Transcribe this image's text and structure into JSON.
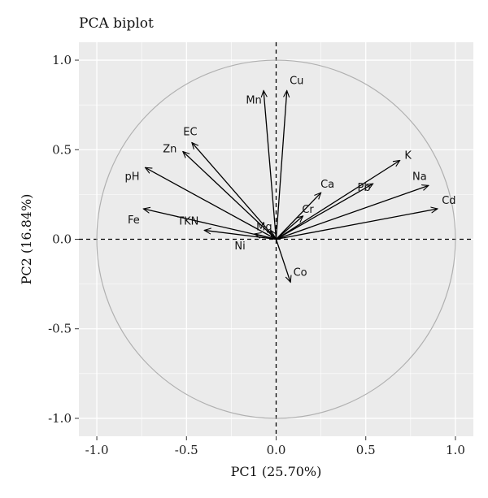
{
  "chart_data": {
    "type": "scatter",
    "subtype": "pca-biplot",
    "title": "PCA biplot",
    "xlabel": "PC1 (25.70%)",
    "ylabel": "PC2 (16.84%)",
    "xlim": [
      -1.1,
      1.1
    ],
    "ylim": [
      -1.1,
      1.1
    ],
    "x_ticks": [
      "-1.0",
      "-0.5",
      "0.0",
      "0.5",
      "1.0"
    ],
    "y_ticks": [
      "-1.0",
      "-0.5",
      "0.0",
      "0.5",
      "1.0"
    ],
    "grid": true,
    "unit_circle": true,
    "reference_lines": "dashed at x=0 and y=0",
    "colors": {
      "panel_background": "#ebebeb",
      "grid": "#ffffff",
      "arrow": "#000000",
      "circle": "#b0b0b0"
    },
    "loadings": [
      {
        "name": "Mn",
        "x": -0.07,
        "y": 0.83
      },
      {
        "name": "Cu",
        "x": 0.06,
        "y": 0.83
      },
      {
        "name": "EC",
        "x": -0.47,
        "y": 0.54
      },
      {
        "name": "Zn",
        "x": -0.52,
        "y": 0.49
      },
      {
        "name": "pH",
        "x": -0.73,
        "y": 0.4
      },
      {
        "name": "Fe",
        "x": -0.74,
        "y": 0.17
      },
      {
        "name": "TKN",
        "x": -0.4,
        "y": 0.05
      },
      {
        "name": "Ni",
        "x": -0.12,
        "y": 0.03
      },
      {
        "name": "Mg",
        "x": -0.03,
        "y": 0.05
      },
      {
        "name": "Co",
        "x": 0.08,
        "y": -0.24
      },
      {
        "name": "Ca",
        "x": 0.25,
        "y": 0.26
      },
      {
        "name": "Cr",
        "x": 0.15,
        "y": 0.13
      },
      {
        "name": "Pb",
        "x": 0.54,
        "y": 0.31
      },
      {
        "name": "K",
        "x": 0.69,
        "y": 0.44
      },
      {
        "name": "Na",
        "x": 0.85,
        "y": 0.3
      },
      {
        "name": "Cd",
        "x": 0.9,
        "y": 0.17
      }
    ]
  }
}
